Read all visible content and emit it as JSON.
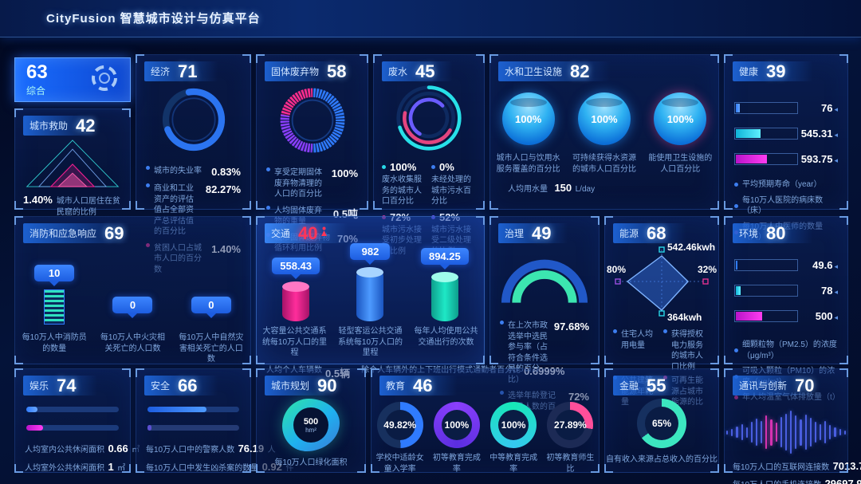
{
  "header": {
    "title": "CityFusion 智慧城市设计与仿真平台"
  },
  "overall": {
    "score": "63",
    "label": "综合"
  },
  "panels": {
    "rescue": {
      "title": "城市救助",
      "score": "42",
      "stat_value": "1.40%",
      "stat_label": "城市人口居住在贫民窟的比例"
    },
    "economy": {
      "title": "经济",
      "score": "71",
      "items": [
        {
          "label": "城市的失业率",
          "value": "0.83%"
        },
        {
          "label": "商业和工业资产的评估值占全部资产总评估值的百分比",
          "value": "82.27%"
        },
        {
          "label": "贫困人口占城市人口的百分数",
          "value": "1.40%"
        }
      ]
    },
    "solid_waste": {
      "title": "固体废弃物",
      "score": "58",
      "items": [
        {
          "label": "享受定期固体废弃物清理的人口的百分比",
          "value": "100%"
        },
        {
          "label": "人均固体废弃物的重量",
          "value": "0.5吨"
        },
        {
          "label": "城市固体废弃物循环利用比例",
          "value": "70%"
        }
      ]
    },
    "wastewater": {
      "title": "废水",
      "score": "45",
      "items": [
        {
          "value": "100%",
          "label": "废水收集服务的城市人口百分比"
        },
        {
          "value": "0%",
          "label": "未经处理的城市污水百分比"
        },
        {
          "value": "72%",
          "label": "城市污水接受初步处理的比例"
        },
        {
          "value": "52%",
          "label": "城市污水接受二级处理的比例"
        }
      ]
    },
    "water": {
      "title": "水和卫生设施",
      "score": "82",
      "gauges": [
        {
          "value": "100%",
          "label": "城市人口与饮用水服务覆盖的百分比"
        },
        {
          "value": "100%",
          "label": "可持续获得水资源的城市人口百分比"
        },
        {
          "value": "100%",
          "label": "能使用卫生设施的人口百分比"
        }
      ],
      "stat_label": "人均用水量",
      "stat_value": "150",
      "stat_unit": "L/day"
    },
    "health": {
      "title": "健康",
      "score": "39",
      "bars": [
        {
          "value": "76"
        },
        {
          "value": "545.31"
        },
        {
          "value": "593.75"
        }
      ],
      "legend": [
        {
          "label": "平均预期寿命（year）"
        },
        {
          "label": "每10万人医院的病床数（床）"
        },
        {
          "label": "每10万人中医师的数量（人）"
        }
      ]
    },
    "fire": {
      "title": "消防和应急响应",
      "score": "69",
      "items": [
        {
          "value": "10",
          "label": "每10万人中消防员的数量"
        },
        {
          "value": "0",
          "label": "每10万人中火灾相关死亡的人口数"
        },
        {
          "value": "0",
          "label": "每10万人中自然灾害相关死亡的人口数"
        }
      ]
    },
    "traffic": {
      "title": "交通",
      "score": "40",
      "bars": [
        {
          "value": "558.43",
          "label": "大容量公共交通系统每10万人口的里程"
        },
        {
          "value": "982",
          "label": "轻型客运公共交通系统每10万人口的里程"
        },
        {
          "value": "894.25",
          "label": "每年人均使用公共交通出行的次数"
        }
      ],
      "stats": [
        {
          "label": "人均个人车辆数",
          "value": "0.5辆"
        },
        {
          "label": "除个人车辆外的上下班出行模式通勤者百分比",
          "value": "0.6999%"
        }
      ]
    },
    "governance": {
      "title": "治理",
      "score": "49",
      "items": [
        {
          "label": "在上次市政选举中选民参与率（占符合条件选民的百分比）",
          "value": "97.68%"
        },
        {
          "label": "选举年龄登记选民人数的百分比",
          "value": "72%"
        }
      ]
    },
    "energy": {
      "title": "能源",
      "score": "68",
      "axis": {
        "top": "542.46kwh",
        "left": "80%",
        "right": "32%",
        "bottom": "364kwh"
      },
      "legend": [
        {
          "label": "住宅人均用电量"
        },
        {
          "label": "获得授权电力服务的城市人口比例"
        },
        {
          "label": "公共建筑能源年耗量"
        },
        {
          "label": "可再生能源占城市能源的比重"
        }
      ]
    },
    "environment": {
      "title": "环境",
      "score": "80",
      "bars": [
        {
          "value": "49.6"
        },
        {
          "value": "78"
        },
        {
          "value": "500"
        }
      ],
      "legend": [
        {
          "label": "细颗粒物（PM2.5）的浓度（μg/m³）"
        },
        {
          "label": "可吸入颗粒（PM10）的浓度（μg/m³）"
        },
        {
          "label": "年人均温室气体排放量（t）"
        }
      ]
    },
    "entertainment": {
      "title": "娱乐",
      "score": "74",
      "stats": [
        {
          "label": "人均室内公共休闲面积",
          "value": "0.66",
          "unit": "㎡"
        },
        {
          "label": "人均室外公共休闲面积",
          "value": "1",
          "unit": "㎡"
        }
      ]
    },
    "safety": {
      "title": "安全",
      "score": "66",
      "stats": [
        {
          "label": "每10万人口中的警察人数",
          "value": "76.19",
          "unit": "人"
        },
        {
          "label": "每10万人口中发生凶杀案的数量",
          "value": "0.92",
          "unit": "件"
        }
      ]
    },
    "planning": {
      "title": "城市规划",
      "score": "90",
      "center_value": "500",
      "center_unit": "hm²",
      "label": "每10万人口绿化面积"
    },
    "education": {
      "title": "教育",
      "score": "46",
      "donuts": [
        {
          "value": "49.82%",
          "label": "学校中适龄女童入学率"
        },
        {
          "value": "100%",
          "label": "初等教育完成率"
        },
        {
          "value": "100%",
          "label": "中等教育完成率"
        },
        {
          "value": "27.89%",
          "label": "初等教育师生比"
        }
      ]
    },
    "finance": {
      "title": "金融",
      "score": "55",
      "center_value": "65%",
      "label": "自有收入来源占总收入的百分比"
    },
    "telecom": {
      "title": "通讯与创新",
      "score": "70",
      "stats": [
        {
          "label": "每10万人口的互联网连接数",
          "value": "7013.78",
          "unit": "个"
        },
        {
          "label": "每10万人口的手机连接数",
          "value": "29697.92",
          "unit": "次"
        }
      ]
    }
  }
}
